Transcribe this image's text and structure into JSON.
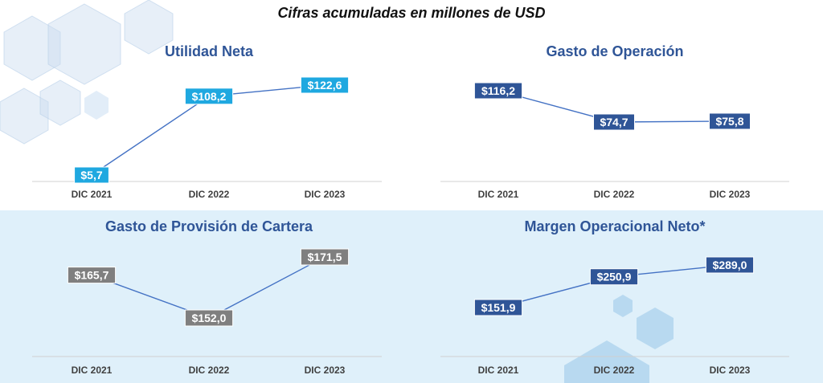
{
  "page_title": "Cifras acumuladas en millones de USD",
  "chart_data": [
    {
      "type": "line",
      "title": "Utilidad Neta",
      "categories": [
        "DIC 2021",
        "DIC 2022",
        "DIC 2023"
      ],
      "values": [
        5.7,
        108.2,
        122.6
      ],
      "value_labels": [
        "$5,7",
        "$108,2",
        "$122,6"
      ],
      "color": "#1fa8e0",
      "xlabel": "",
      "ylabel": ""
    },
    {
      "type": "line",
      "title": "Gasto de Operación",
      "categories": [
        "DIC 2021",
        "DIC 2022",
        "DIC 2023"
      ],
      "values": [
        116.2,
        74.7,
        75.8
      ],
      "value_labels": [
        "$116,2",
        "$74,7",
        "$75,8"
      ],
      "color": "#2f5597",
      "xlabel": "",
      "ylabel": ""
    },
    {
      "type": "line",
      "title": "Gasto de Provisión de Cartera",
      "categories": [
        "DIC 2021",
        "DIC 2022",
        "DIC 2023"
      ],
      "values": [
        165.7,
        152.0,
        171.5
      ],
      "value_labels": [
        "$165,7",
        "$152,0",
        "$171,5"
      ],
      "color": "#7f7f7f",
      "xlabel": "",
      "ylabel": ""
    },
    {
      "type": "line",
      "title": "Margen Operacional Neto*",
      "categories": [
        "DIC 2021",
        "DIC 2022",
        "DIC 2023"
      ],
      "values": [
        151.9,
        250.9,
        289.0
      ],
      "value_labels": [
        "$151,9",
        "$250,9",
        "$289,0"
      ],
      "color": "#2f5597",
      "xlabel": "",
      "ylabel": ""
    }
  ]
}
